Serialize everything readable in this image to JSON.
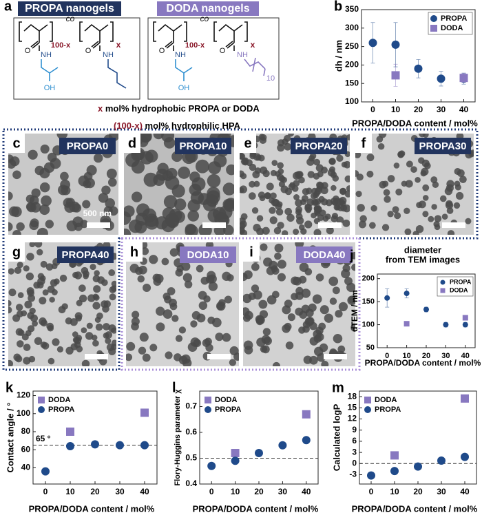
{
  "panel_a": {
    "letter": "a",
    "propa_header": "PROPA nanogels",
    "doda_header": "DODA nanogels",
    "co": "co",
    "repeat_hpa": "100-x",
    "repeat_hydrophobic": "x",
    "amide": "NH",
    "carbonyl": "O",
    "hydroxyl": "OH",
    "dodecyl_repeat": "10",
    "note_1": {
      "x": "x",
      "text": " mol% hydrophobic PROPA or DODA"
    },
    "note_2": {
      "x": "(100-x)",
      "text": " mol% hydrophilic HPA"
    }
  },
  "tem_images": [
    {
      "letter": "c",
      "label": "PROPA0",
      "scale": "500 nm"
    },
    {
      "letter": "d",
      "label": "PROPA10"
    },
    {
      "letter": "e",
      "label": "PROPA20"
    },
    {
      "letter": "f",
      "label": "PROPA30"
    },
    {
      "letter": "g",
      "label": "PROPA40"
    },
    {
      "letter": "h",
      "label": "DODA10"
    },
    {
      "letter": "i",
      "label": "DODA40"
    }
  ],
  "chart_data": [
    {
      "type": "scatter",
      "panel": "b",
      "xlabel": "PROPA/DODA content / mol%",
      "ylabel": "dh / nm",
      "xlim": [
        -5,
        45
      ],
      "xticks": [
        0,
        10,
        20,
        30,
        40
      ],
      "ylim": [
        100,
        350
      ],
      "yticks": [
        100,
        150,
        200,
        250,
        300,
        350
      ],
      "legend": "upper right",
      "series": [
        {
          "name": "PROPA",
          "color": "#1f4a8a",
          "marker": "circle",
          "x": [
            0,
            10,
            20,
            30,
            40
          ],
          "values": [
            260,
            255,
            190,
            163,
            163
          ],
          "errors": [
            55,
            60,
            25,
            20,
            15
          ]
        },
        {
          "name": "DODA",
          "color": "#8878c0",
          "marker": "square",
          "x": [
            10,
            40
          ],
          "values": [
            172,
            165
          ],
          "errors": [
            30,
            12
          ]
        }
      ]
    },
    {
      "type": "scatter",
      "panel": "j",
      "title": [
        "diameter",
        "from TEM images"
      ],
      "xlabel": "PROPA/DODA content / mol%",
      "ylabel": "dTEM / nm",
      "xlim": [
        -5,
        45
      ],
      "xticks": [
        0,
        10,
        20,
        30,
        40
      ],
      "ylim": [
        50,
        210
      ],
      "yticks": [
        50,
        100,
        150,
        200
      ],
      "legend": "upper right",
      "series": [
        {
          "name": "PROPA",
          "color": "#1f4a8a",
          "marker": "circle",
          "x": [
            0,
            10,
            20,
            30,
            40
          ],
          "values": [
            158,
            168,
            133,
            100,
            100
          ],
          "errors": [
            20,
            10,
            5,
            5,
            5
          ]
        },
        {
          "name": "DODA",
          "color": "#8878c0",
          "marker": "square",
          "x": [
            10,
            40
          ],
          "values": [
            102,
            115
          ]
        }
      ]
    },
    {
      "type": "scatter",
      "panel": "k",
      "xlabel": "PROPA/DODA content / mol%",
      "ylabel": "Contact angle / °",
      "xlim": [
        -5,
        45
      ],
      "xticks": [
        0,
        10,
        20,
        30,
        40
      ],
      "ylim": [
        22,
        125
      ],
      "yticks": [
        40,
        60,
        80,
        100,
        120
      ],
      "legend": "upper left",
      "reference_line": 65,
      "annotation": "65 °",
      "series": [
        {
          "name": "DODA",
          "color": "#8878c0",
          "marker": "square",
          "x": [
            10,
            40
          ],
          "values": [
            80,
            101
          ]
        },
        {
          "name": "PROPA",
          "color": "#1f4a8a",
          "marker": "circle",
          "x": [
            0,
            10,
            20,
            30,
            40
          ],
          "values": [
            36,
            64,
            66,
            65,
            65
          ]
        }
      ]
    },
    {
      "type": "scatter",
      "panel": "l",
      "xlabel": "PROPA/DODA content / mol%",
      "ylabel": "Flory-Huggins parameter χ",
      "xlim": [
        -5,
        45
      ],
      "xticks": [
        0,
        10,
        20,
        30,
        40
      ],
      "ylim": [
        0.4,
        0.76
      ],
      "yticks": [
        0.4,
        0.5,
        0.6,
        0.7
      ],
      "legend": "upper left",
      "reference_line": 0.5,
      "series": [
        {
          "name": "DODA",
          "color": "#8878c0",
          "marker": "square",
          "x": [
            10,
            40
          ],
          "values": [
            0.52,
            0.67
          ]
        },
        {
          "name": "PROPA",
          "color": "#1f4a8a",
          "marker": "circle",
          "x": [
            0,
            10,
            20,
            30,
            40
          ],
          "values": [
            0.47,
            0.49,
            0.52,
            0.55,
            0.57
          ]
        }
      ]
    },
    {
      "type": "scatter",
      "panel": "m",
      "xlabel": "PROPA/DODA content / mol%",
      "ylabel": "Calculated logP",
      "xlim": [
        -5,
        45
      ],
      "xticks": [
        0,
        10,
        20,
        30,
        40
      ],
      "ylim": [
        -5.5,
        19.5
      ],
      "yticks": [
        -3,
        0,
        3,
        6,
        9,
        12,
        15,
        18
      ],
      "legend": "upper left",
      "reference_line": 0,
      "series": [
        {
          "name": "DODA",
          "color": "#8878c0",
          "marker": "square",
          "x": [
            10,
            40
          ],
          "values": [
            2.2,
            17.5
          ]
        },
        {
          "name": "PROPA",
          "color": "#1f4a8a",
          "marker": "circle",
          "x": [
            0,
            10,
            20,
            30,
            40
          ],
          "values": [
            -3.2,
            -2,
            -0.8,
            0.8,
            1.8
          ]
        }
      ]
    }
  ]
}
